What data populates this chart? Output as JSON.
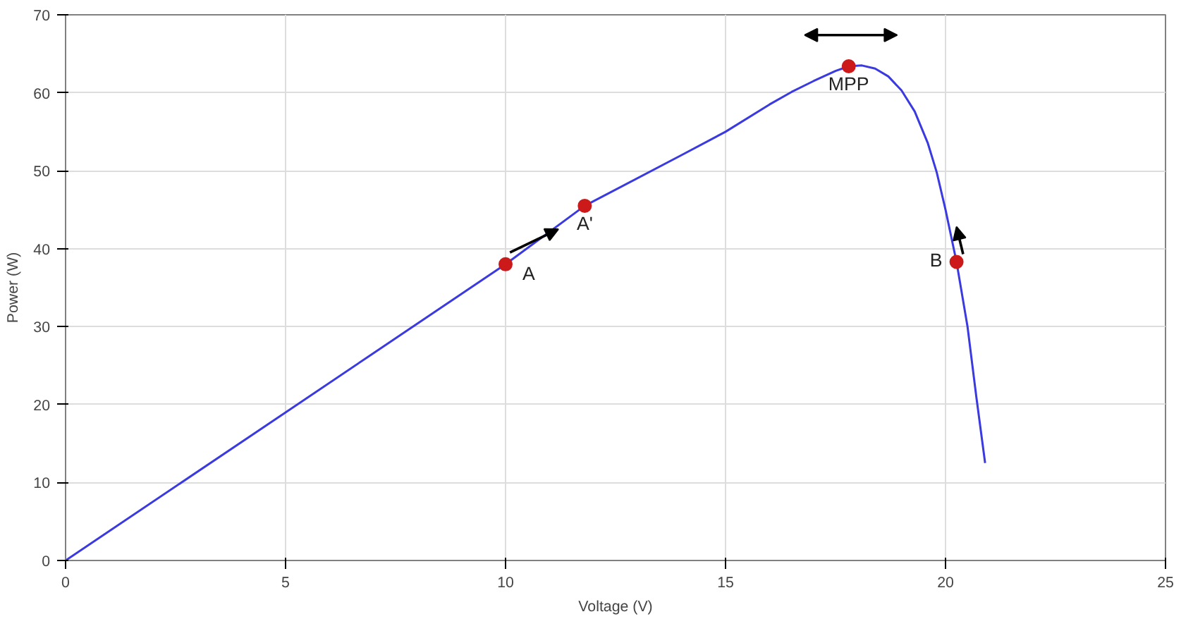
{
  "chart_data": {
    "type": "line",
    "xlabel": "Voltage (V)",
    "ylabel": "Power (W)",
    "xlim": [
      0,
      25
    ],
    "ylim": [
      0,
      70
    ],
    "xticks": [
      0,
      5,
      10,
      15,
      20,
      25
    ],
    "yticks": [
      0,
      10,
      20,
      30,
      40,
      50,
      60,
      70
    ],
    "grid": true,
    "series": [
      {
        "color": "#3a3ae0",
        "marker": "none",
        "x": [
          0,
          5,
          10,
          11.8,
          14,
          15,
          16,
          16.5,
          17,
          17.5,
          17.8,
          18.1,
          18.4,
          18.7,
          19,
          19.3,
          19.6,
          19.8,
          20,
          20.25,
          20.5,
          20.7,
          20.9
        ],
        "values": [
          0,
          19,
          38,
          45.5,
          52,
          55,
          58.5,
          60.1,
          61.5,
          62.8,
          63.4,
          63.5,
          63.1,
          62.1,
          60.3,
          57.6,
          53.5,
          49.8,
          45,
          38.3,
          30,
          21,
          12.5
        ]
      },
      {
        "type": "scatter",
        "color": "#cc1a1a",
        "marker": "circle",
        "x": [
          10,
          11.8,
          17.8,
          20.25
        ],
        "values": [
          38,
          45.5,
          63.4,
          38.3
        ]
      }
    ],
    "annotations": [
      {
        "text": "A",
        "x": 10,
        "y": 38
      },
      {
        "text": "A'",
        "x": 11.8,
        "y": 45.5
      },
      {
        "text": "MPP",
        "x": 17.8,
        "y": 63.4
      },
      {
        "text": "B",
        "x": 20.25,
        "y": 38.3
      }
    ]
  }
}
